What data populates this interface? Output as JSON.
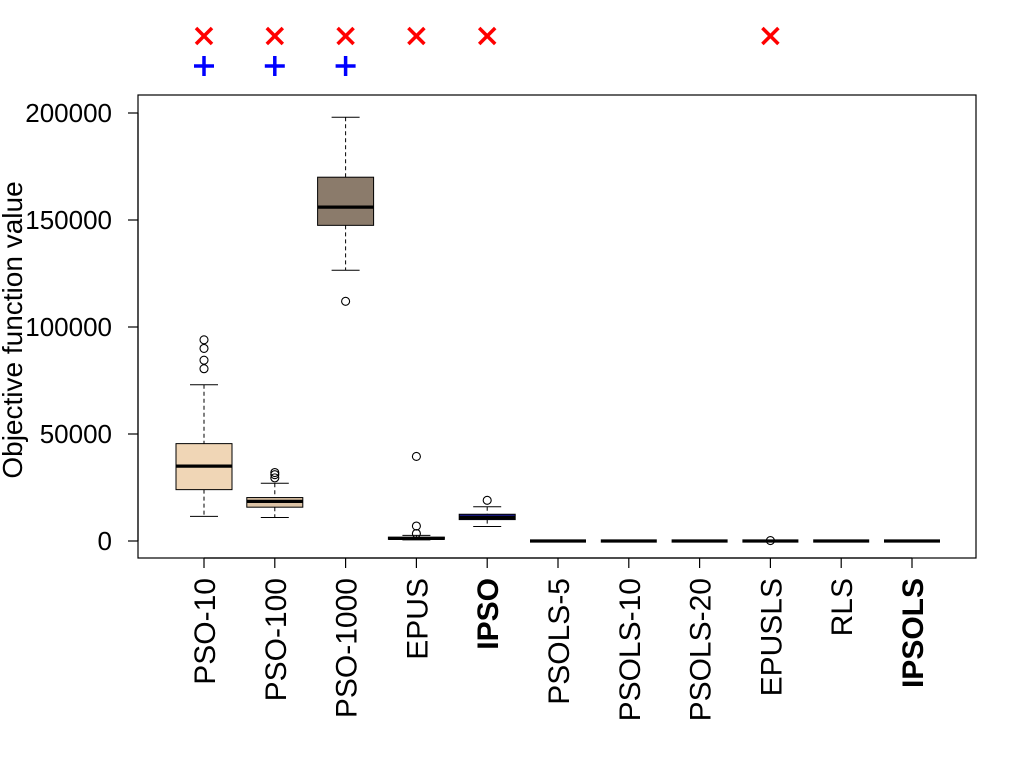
{
  "chart_data": {
    "type": "box",
    "ylabel": "Objective function value",
    "ylim": [
      -8000,
      208000
    ],
    "yticks": [
      0,
      50000,
      100000,
      150000,
      200000
    ],
    "ytick_labels": [
      "0",
      "50000",
      "100000",
      "150000",
      "200000"
    ],
    "grid": false,
    "categories": [
      "PSO-10",
      "PSO-100",
      "PSO-1000",
      "EPUS",
      "IPSO",
      "PSOLS-5",
      "PSOLS-10",
      "PSOLS-20",
      "EPUSLS",
      "RLS",
      "IPSOLS"
    ],
    "bold_categories": [
      "IPSO",
      "IPSOLS"
    ],
    "boxes": [
      {
        "name": "PSO-10",
        "min": 11500,
        "q1": 24000,
        "median": 35000,
        "q3": 45500,
        "max": 73000,
        "outliers": [
          80500,
          84500,
          90000,
          94000
        ],
        "color": "#f0d6b6"
      },
      {
        "name": "PSO-100",
        "min": 11000,
        "q1": 15800,
        "median": 18500,
        "q3": 20300,
        "max": 27000,
        "outliers": [
          29500,
          31000,
          32000
        ],
        "color": "#ddc4a6"
      },
      {
        "name": "PSO-1000",
        "min": 126500,
        "q1": 147500,
        "median": 156000,
        "q3": 170000,
        "max": 198000,
        "outliers": [
          112000
        ],
        "color": "#8b7b6b"
      },
      {
        "name": "EPUS",
        "min": 500,
        "q1": 800,
        "median": 1200,
        "q3": 1800,
        "max": 2600,
        "outliers": [
          3500,
          7000,
          39500
        ],
        "color": "#f0d6b6"
      },
      {
        "name": "IPSO",
        "min": 6800,
        "q1": 10000,
        "median": 11000,
        "q3": 12500,
        "max": 16000,
        "outliers": [
          19000
        ],
        "color": "#1a1a8c"
      },
      {
        "name": "PSOLS-5",
        "min": 0,
        "q1": 0,
        "median": 0,
        "q3": 0,
        "max": 0,
        "outliers": [],
        "color": "#ffffff"
      },
      {
        "name": "PSOLS-10",
        "min": 0,
        "q1": 0,
        "median": 0,
        "q3": 0,
        "max": 0,
        "outliers": [],
        "color": "#ffffff"
      },
      {
        "name": "PSOLS-20",
        "min": 0,
        "q1": 0,
        "median": 0,
        "q3": 0,
        "max": 0,
        "outliers": [],
        "color": "#ffffff"
      },
      {
        "name": "EPUSLS",
        "min": 0,
        "q1": 0,
        "median": 0,
        "q3": 0,
        "max": 0,
        "outliers": [
          200
        ],
        "color": "#ffffff"
      },
      {
        "name": "RLS",
        "min": 0,
        "q1": 0,
        "median": 0,
        "q3": 0,
        "max": 0,
        "outliers": [],
        "color": "#ffffff"
      },
      {
        "name": "IPSOLS",
        "min": 0,
        "q1": 0,
        "median": 0,
        "q3": 0,
        "max": 0,
        "outliers": [],
        "color": "#ffffff"
      }
    ],
    "markers": {
      "cross": {
        "symbol": "×",
        "color": "#ff0000",
        "categories": [
          "PSO-10",
          "PSO-100",
          "PSO-1000",
          "EPUS",
          "IPSO",
          "EPUSLS"
        ]
      },
      "plus": {
        "symbol": "+",
        "color": "#0000ff",
        "categories": [
          "PSO-10",
          "PSO-100",
          "PSO-1000"
        ]
      }
    }
  }
}
